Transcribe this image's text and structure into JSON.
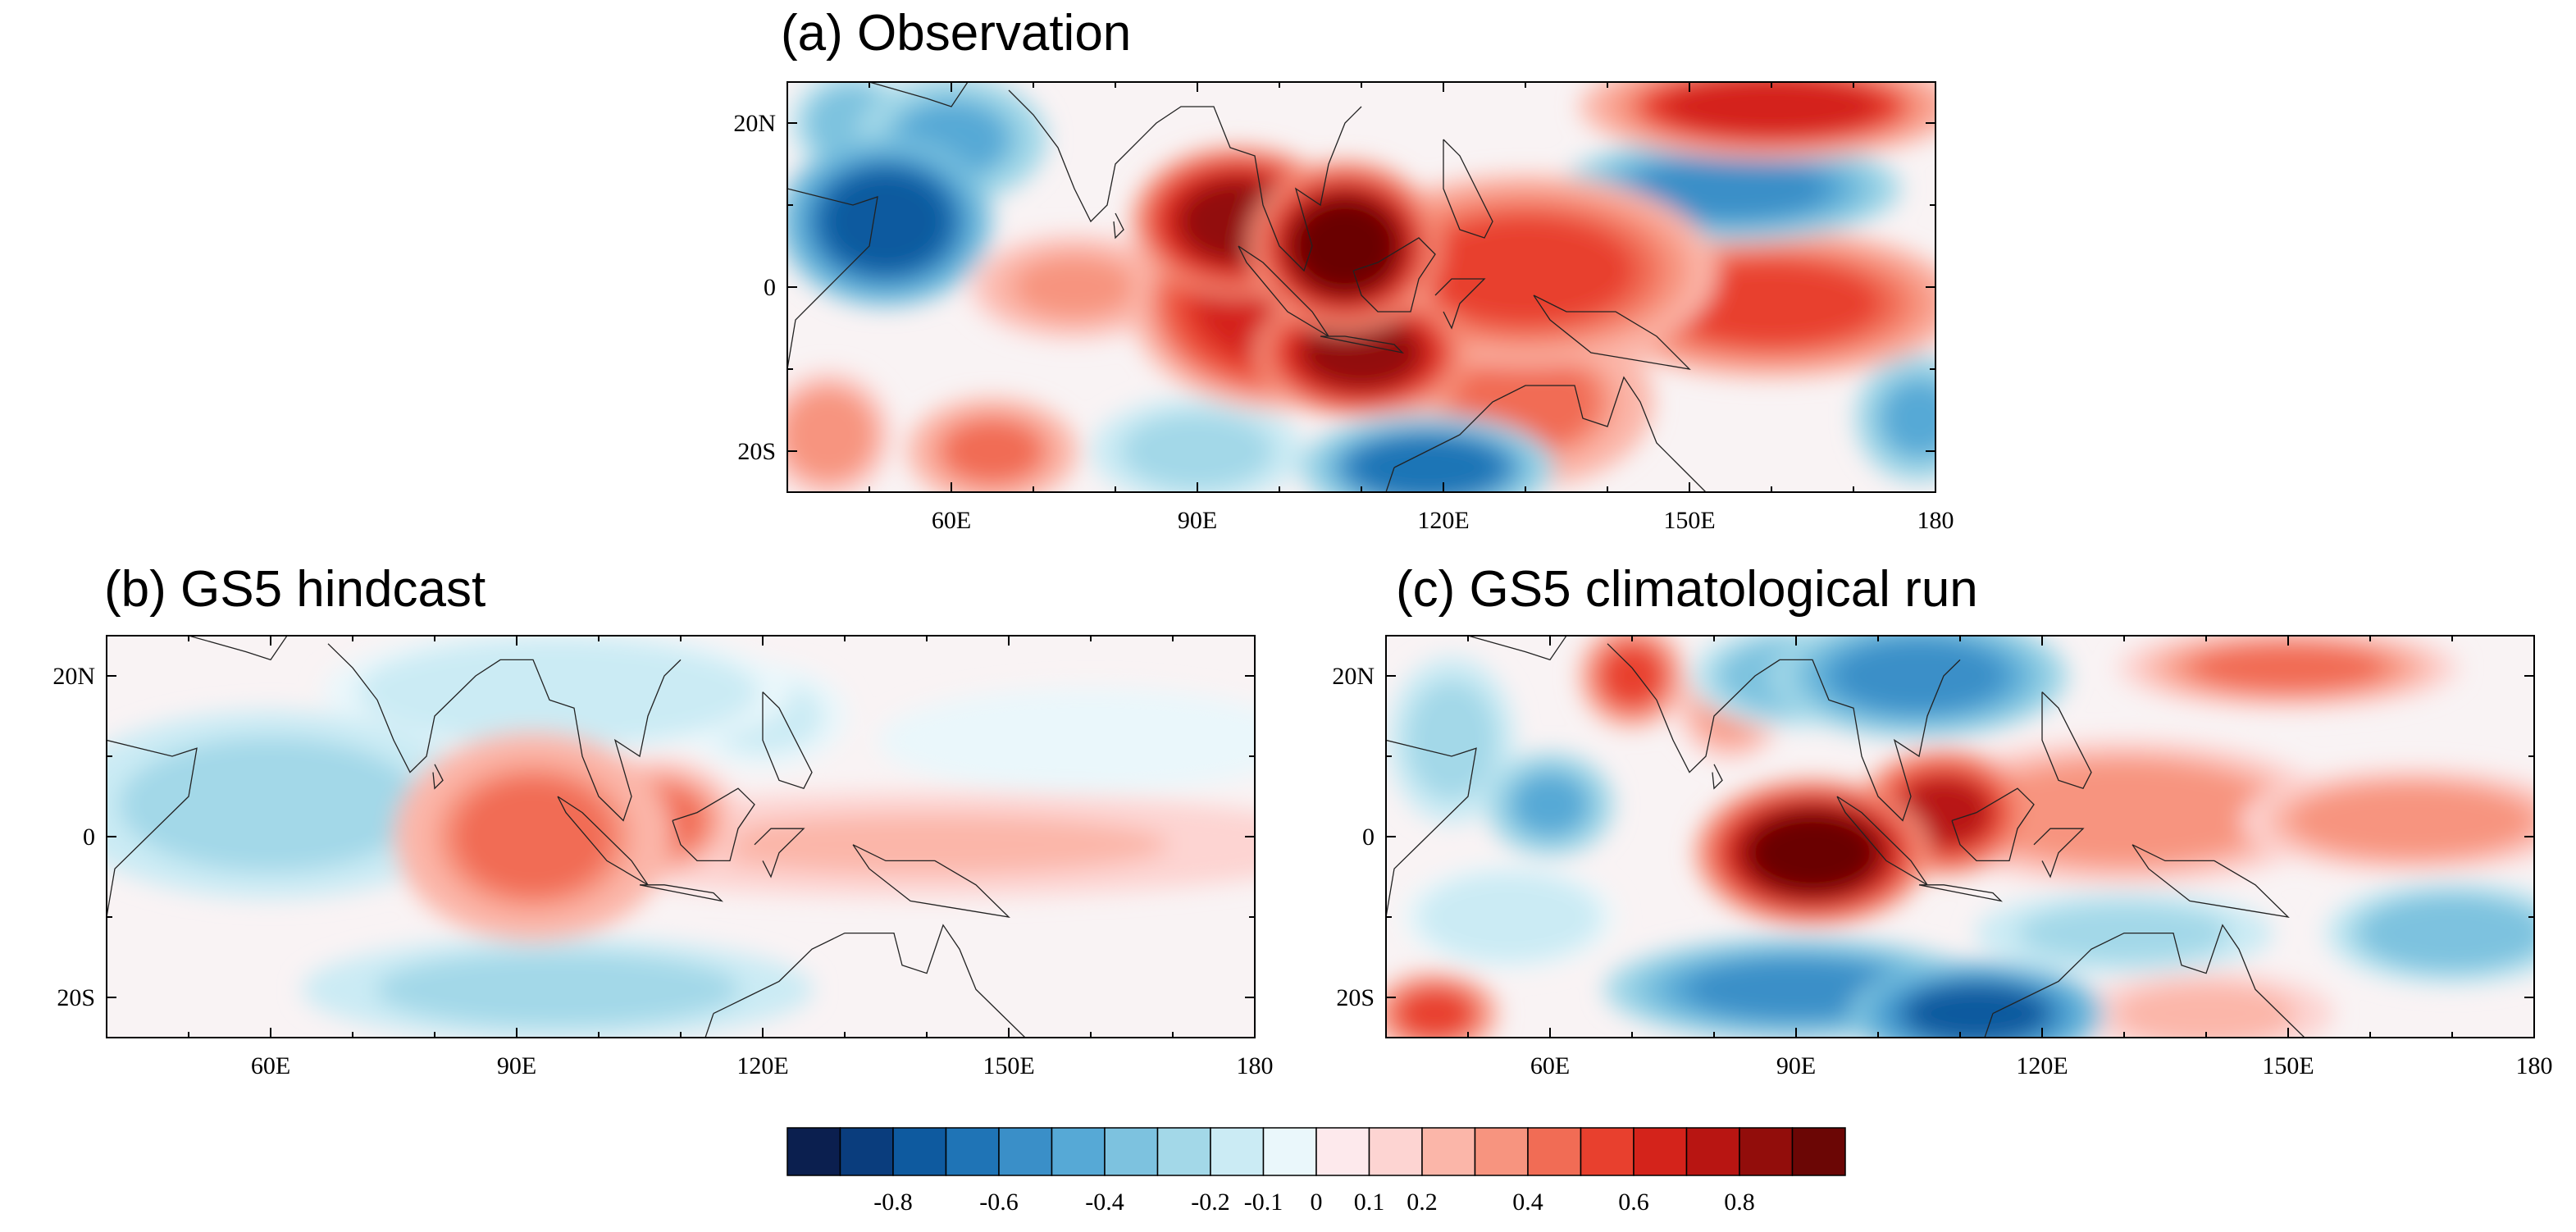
{
  "figure": {
    "colorbar": {
      "colors": [
        "#0b1f4f",
        "#0a3d7d",
        "#0e5a9f",
        "#1f74b6",
        "#3a8fc8",
        "#56a9d6",
        "#7dc2df",
        "#a3d8e8",
        "#cbebf4",
        "#eaf7fb",
        "#fde9ec",
        "#fdd4d2",
        "#fbb6a9",
        "#f7947f",
        "#f16c55",
        "#e8402e",
        "#d4231b",
        "#b81512",
        "#920d0b",
        "#6b0605"
      ],
      "ticks": [
        "-0.8",
        "-0.6",
        "-0.4",
        "-0.2",
        "-0.1",
        "0",
        "0.1",
        "0.2",
        "0.4",
        "0.6",
        "0.8"
      ]
    }
  },
  "chart_data": [
    {
      "type": "heatmap",
      "title": "(a) Observation",
      "x_ticks": [
        "60E",
        "90E",
        "120E",
        "150E",
        "180"
      ],
      "y_ticks": [
        "20N",
        "0",
        "20S"
      ],
      "xlim": [
        40,
        180
      ],
      "ylim": [
        -25,
        25
      ],
      "anomalies": [
        {
          "lon": 52,
          "lat": 8,
          "value": -0.8,
          "rx": 10,
          "ry": 8
        },
        {
          "lon": 60,
          "lat": 18,
          "value": -0.5,
          "rx": 9,
          "ry": 6
        },
        {
          "lon": 48,
          "lat": 20,
          "value": -0.4,
          "rx": 6,
          "ry": 5
        },
        {
          "lon": 95,
          "lat": 8,
          "value": 0.9,
          "rx": 10,
          "ry": 7
        },
        {
          "lon": 108,
          "lat": 5,
          "value": 0.95,
          "rx": 9,
          "ry": 8
        },
        {
          "lon": 110,
          "lat": -8,
          "value": 0.85,
          "rx": 10,
          "ry": 6
        },
        {
          "lon": 100,
          "lat": -2,
          "value": 0.7,
          "rx": 14,
          "ry": 10
        },
        {
          "lon": 130,
          "lat": 2,
          "value": 0.6,
          "rx": 18,
          "ry": 9
        },
        {
          "lon": 160,
          "lat": 22,
          "value": 0.65,
          "rx": 18,
          "ry": 5
        },
        {
          "lon": 160,
          "lat": -2,
          "value": 0.55,
          "rx": 18,
          "ry": 7
        },
        {
          "lon": 130,
          "lat": -14,
          "value": 0.5,
          "rx": 12,
          "ry": 8
        },
        {
          "lon": 155,
          "lat": 12,
          "value": -0.55,
          "rx": 16,
          "ry": 5
        },
        {
          "lon": 118,
          "lat": -22,
          "value": -0.65,
          "rx": 12,
          "ry": 5
        },
        {
          "lon": 90,
          "lat": -20,
          "value": -0.3,
          "rx": 10,
          "ry": 5
        },
        {
          "lon": 65,
          "lat": -20,
          "value": 0.5,
          "rx": 8,
          "ry": 5
        },
        {
          "lon": 75,
          "lat": 0,
          "value": 0.35,
          "rx": 10,
          "ry": 5
        },
        {
          "lon": 45,
          "lat": -18,
          "value": 0.4,
          "rx": 6,
          "ry": 6
        },
        {
          "lon": 178,
          "lat": -16,
          "value": -0.5,
          "rx": 6,
          "ry": 6
        }
      ]
    },
    {
      "type": "heatmap",
      "title": "(b) GS5 hindcast",
      "x_ticks": [
        "60E",
        "90E",
        "120E",
        "150E",
        "180"
      ],
      "y_ticks": [
        "20N",
        "0",
        "20S"
      ],
      "xlim": [
        40,
        180
      ],
      "ylim": [
        -25,
        25
      ],
      "anomalies": [
        {
          "lon": 60,
          "lat": 4,
          "value": -0.3,
          "rx": 20,
          "ry": 9
        },
        {
          "lon": 95,
          "lat": 18,
          "value": -0.2,
          "rx": 22,
          "ry": 6
        },
        {
          "lon": 95,
          "lat": -19,
          "value": -0.3,
          "rx": 24,
          "ry": 5
        },
        {
          "lon": 92,
          "lat": 0,
          "value": 0.5,
          "rx": 13,
          "ry": 10
        },
        {
          "lon": 107,
          "lat": 2,
          "value": 0.45,
          "rx": 8,
          "ry": 6
        },
        {
          "lon": 140,
          "lat": -1,
          "value": 0.25,
          "rx": 40,
          "ry": 5
        },
        {
          "lon": 160,
          "lat": 12,
          "value": -0.1,
          "rx": 20,
          "ry": 5
        },
        {
          "lon": 120,
          "lat": 15,
          "value": -0.15,
          "rx": 8,
          "ry": 5
        }
      ]
    },
    {
      "type": "heatmap",
      "title": "(c) GS5 climatological run",
      "x_ticks": [
        "60E",
        "90E",
        "120E",
        "150E",
        "180"
      ],
      "y_ticks": [
        "20N",
        "0",
        "20S"
      ],
      "xlim": [
        40,
        180
      ],
      "ylim": [
        -25,
        25
      ],
      "anomalies": [
        {
          "lon": 92,
          "lat": -2,
          "value": 0.95,
          "rx": 11,
          "ry": 7
        },
        {
          "lon": 108,
          "lat": 3,
          "value": 0.75,
          "rx": 8,
          "ry": 6
        },
        {
          "lon": 130,
          "lat": 3,
          "value": 0.4,
          "rx": 20,
          "ry": 7
        },
        {
          "lon": 165,
          "lat": 2,
          "value": 0.4,
          "rx": 16,
          "ry": 5
        },
        {
          "lon": 70,
          "lat": 20,
          "value": 0.55,
          "rx": 5,
          "ry": 5
        },
        {
          "lon": 82,
          "lat": 16,
          "value": 0.35,
          "rx": 5,
          "ry": 5
        },
        {
          "lon": 105,
          "lat": 20,
          "value": -0.6,
          "rx": 14,
          "ry": 6
        },
        {
          "lon": 90,
          "lat": 20,
          "value": -0.4,
          "rx": 10,
          "ry": 5
        },
        {
          "lon": 150,
          "lat": 21,
          "value": 0.45,
          "rx": 16,
          "ry": 4
        },
        {
          "lon": 60,
          "lat": 4,
          "value": -0.5,
          "rx": 6,
          "ry": 5
        },
        {
          "lon": 48,
          "lat": 12,
          "value": -0.3,
          "rx": 6,
          "ry": 8
        },
        {
          "lon": 112,
          "lat": -22,
          "value": -0.75,
          "rx": 12,
          "ry": 5
        },
        {
          "lon": 90,
          "lat": -19,
          "value": -0.55,
          "rx": 18,
          "ry": 5
        },
        {
          "lon": 130,
          "lat": -12,
          "value": -0.3,
          "rx": 14,
          "ry": 4
        },
        {
          "lon": 170,
          "lat": -12,
          "value": -0.4,
          "rx": 12,
          "ry": 5
        },
        {
          "lon": 55,
          "lat": -10,
          "value": -0.2,
          "rx": 10,
          "ry": 5
        },
        {
          "lon": 46,
          "lat": -22,
          "value": 0.55,
          "rx": 6,
          "ry": 4
        },
        {
          "lon": 140,
          "lat": -22,
          "value": 0.3,
          "rx": 12,
          "ry": 4
        }
      ]
    }
  ]
}
